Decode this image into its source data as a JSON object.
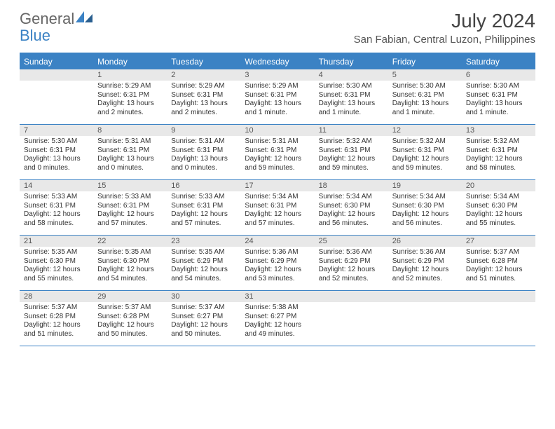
{
  "logo": {
    "text1": "General",
    "text2": "Blue"
  },
  "title": "July 2024",
  "location": "San Fabian, Central Luzon, Philippines",
  "colors": {
    "header_bg": "#3b82c4",
    "header_text": "#ffffff",
    "daynum_bg": "#e8e8e8",
    "border": "#3b82c4",
    "body_text": "#333333"
  },
  "dayNames": [
    "Sunday",
    "Monday",
    "Tuesday",
    "Wednesday",
    "Thursday",
    "Friday",
    "Saturday"
  ],
  "weeks": [
    [
      {
        "day": "",
        "sunrise": "",
        "sunset": "",
        "daylight": ""
      },
      {
        "day": "1",
        "sunrise": "Sunrise: 5:29 AM",
        "sunset": "Sunset: 6:31 PM",
        "daylight": "Daylight: 13 hours and 2 minutes."
      },
      {
        "day": "2",
        "sunrise": "Sunrise: 5:29 AM",
        "sunset": "Sunset: 6:31 PM",
        "daylight": "Daylight: 13 hours and 2 minutes."
      },
      {
        "day": "3",
        "sunrise": "Sunrise: 5:29 AM",
        "sunset": "Sunset: 6:31 PM",
        "daylight": "Daylight: 13 hours and 1 minute."
      },
      {
        "day": "4",
        "sunrise": "Sunrise: 5:30 AM",
        "sunset": "Sunset: 6:31 PM",
        "daylight": "Daylight: 13 hours and 1 minute."
      },
      {
        "day": "5",
        "sunrise": "Sunrise: 5:30 AM",
        "sunset": "Sunset: 6:31 PM",
        "daylight": "Daylight: 13 hours and 1 minute."
      },
      {
        "day": "6",
        "sunrise": "Sunrise: 5:30 AM",
        "sunset": "Sunset: 6:31 PM",
        "daylight": "Daylight: 13 hours and 1 minute."
      }
    ],
    [
      {
        "day": "7",
        "sunrise": "Sunrise: 5:30 AM",
        "sunset": "Sunset: 6:31 PM",
        "daylight": "Daylight: 13 hours and 0 minutes."
      },
      {
        "day": "8",
        "sunrise": "Sunrise: 5:31 AM",
        "sunset": "Sunset: 6:31 PM",
        "daylight": "Daylight: 13 hours and 0 minutes."
      },
      {
        "day": "9",
        "sunrise": "Sunrise: 5:31 AM",
        "sunset": "Sunset: 6:31 PM",
        "daylight": "Daylight: 13 hours and 0 minutes."
      },
      {
        "day": "10",
        "sunrise": "Sunrise: 5:31 AM",
        "sunset": "Sunset: 6:31 PM",
        "daylight": "Daylight: 12 hours and 59 minutes."
      },
      {
        "day": "11",
        "sunrise": "Sunrise: 5:32 AM",
        "sunset": "Sunset: 6:31 PM",
        "daylight": "Daylight: 12 hours and 59 minutes."
      },
      {
        "day": "12",
        "sunrise": "Sunrise: 5:32 AM",
        "sunset": "Sunset: 6:31 PM",
        "daylight": "Daylight: 12 hours and 59 minutes."
      },
      {
        "day": "13",
        "sunrise": "Sunrise: 5:32 AM",
        "sunset": "Sunset: 6:31 PM",
        "daylight": "Daylight: 12 hours and 58 minutes."
      }
    ],
    [
      {
        "day": "14",
        "sunrise": "Sunrise: 5:33 AM",
        "sunset": "Sunset: 6:31 PM",
        "daylight": "Daylight: 12 hours and 58 minutes."
      },
      {
        "day": "15",
        "sunrise": "Sunrise: 5:33 AM",
        "sunset": "Sunset: 6:31 PM",
        "daylight": "Daylight: 12 hours and 57 minutes."
      },
      {
        "day": "16",
        "sunrise": "Sunrise: 5:33 AM",
        "sunset": "Sunset: 6:31 PM",
        "daylight": "Daylight: 12 hours and 57 minutes."
      },
      {
        "day": "17",
        "sunrise": "Sunrise: 5:34 AM",
        "sunset": "Sunset: 6:31 PM",
        "daylight": "Daylight: 12 hours and 57 minutes."
      },
      {
        "day": "18",
        "sunrise": "Sunrise: 5:34 AM",
        "sunset": "Sunset: 6:30 PM",
        "daylight": "Daylight: 12 hours and 56 minutes."
      },
      {
        "day": "19",
        "sunrise": "Sunrise: 5:34 AM",
        "sunset": "Sunset: 6:30 PM",
        "daylight": "Daylight: 12 hours and 56 minutes."
      },
      {
        "day": "20",
        "sunrise": "Sunrise: 5:34 AM",
        "sunset": "Sunset: 6:30 PM",
        "daylight": "Daylight: 12 hours and 55 minutes."
      }
    ],
    [
      {
        "day": "21",
        "sunrise": "Sunrise: 5:35 AM",
        "sunset": "Sunset: 6:30 PM",
        "daylight": "Daylight: 12 hours and 55 minutes."
      },
      {
        "day": "22",
        "sunrise": "Sunrise: 5:35 AM",
        "sunset": "Sunset: 6:30 PM",
        "daylight": "Daylight: 12 hours and 54 minutes."
      },
      {
        "day": "23",
        "sunrise": "Sunrise: 5:35 AM",
        "sunset": "Sunset: 6:29 PM",
        "daylight": "Daylight: 12 hours and 54 minutes."
      },
      {
        "day": "24",
        "sunrise": "Sunrise: 5:36 AM",
        "sunset": "Sunset: 6:29 PM",
        "daylight": "Daylight: 12 hours and 53 minutes."
      },
      {
        "day": "25",
        "sunrise": "Sunrise: 5:36 AM",
        "sunset": "Sunset: 6:29 PM",
        "daylight": "Daylight: 12 hours and 52 minutes."
      },
      {
        "day": "26",
        "sunrise": "Sunrise: 5:36 AM",
        "sunset": "Sunset: 6:29 PM",
        "daylight": "Daylight: 12 hours and 52 minutes."
      },
      {
        "day": "27",
        "sunrise": "Sunrise: 5:37 AM",
        "sunset": "Sunset: 6:28 PM",
        "daylight": "Daylight: 12 hours and 51 minutes."
      }
    ],
    [
      {
        "day": "28",
        "sunrise": "Sunrise: 5:37 AM",
        "sunset": "Sunset: 6:28 PM",
        "daylight": "Daylight: 12 hours and 51 minutes."
      },
      {
        "day": "29",
        "sunrise": "Sunrise: 5:37 AM",
        "sunset": "Sunset: 6:28 PM",
        "daylight": "Daylight: 12 hours and 50 minutes."
      },
      {
        "day": "30",
        "sunrise": "Sunrise: 5:37 AM",
        "sunset": "Sunset: 6:27 PM",
        "daylight": "Daylight: 12 hours and 50 minutes."
      },
      {
        "day": "31",
        "sunrise": "Sunrise: 5:38 AM",
        "sunset": "Sunset: 6:27 PM",
        "daylight": "Daylight: 12 hours and 49 minutes."
      },
      {
        "day": "",
        "sunrise": "",
        "sunset": "",
        "daylight": ""
      },
      {
        "day": "",
        "sunrise": "",
        "sunset": "",
        "daylight": ""
      },
      {
        "day": "",
        "sunrise": "",
        "sunset": "",
        "daylight": ""
      }
    ]
  ]
}
